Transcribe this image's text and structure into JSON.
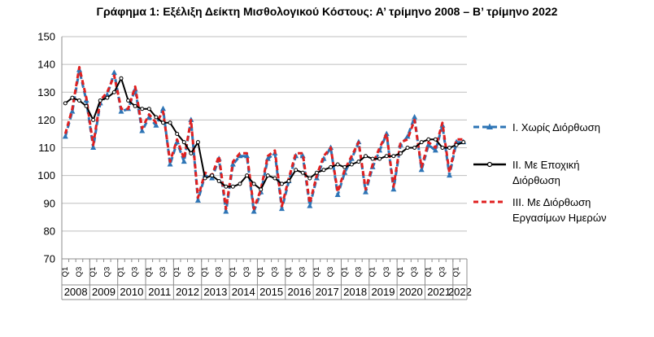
{
  "chart_data": {
    "type": "line",
    "title": "Γράφημα 1: Εξέλιξη Δείκτη Μισθολογικού Κόστους:  Α’ τρίμηνο 2008 – Β’ τρίμηνο 2022",
    "ylim": [
      70,
      150
    ],
    "yticks": [
      70,
      80,
      90,
      100,
      110,
      120,
      130,
      140,
      150
    ],
    "quarter_labels": [
      "Q1",
      "Q3"
    ],
    "years": [
      "2008",
      "2009",
      "2010",
      "2011",
      "2012",
      "2013",
      "2014",
      "2015",
      "2016",
      "2017",
      "2018",
      "2019",
      "2020",
      "2021",
      "2022"
    ],
    "grid": true,
    "legend_position": "right",
    "x": [
      "2008 Q1",
      "2008 Q2",
      "2008 Q3",
      "2008 Q4",
      "2009 Q1",
      "2009 Q2",
      "2009 Q3",
      "2009 Q4",
      "2010 Q1",
      "2010 Q2",
      "2010 Q3",
      "2010 Q4",
      "2011 Q1",
      "2011 Q2",
      "2011 Q3",
      "2011 Q4",
      "2012 Q1",
      "2012 Q2",
      "2012 Q3",
      "2012 Q4",
      "2013 Q1",
      "2013 Q2",
      "2013 Q3",
      "2013 Q4",
      "2014 Q1",
      "2014 Q2",
      "2014 Q3",
      "2014 Q4",
      "2015 Q1",
      "2015 Q2",
      "2015 Q3",
      "2015 Q4",
      "2016 Q1",
      "2016 Q2",
      "2016 Q3",
      "2016 Q4",
      "2017 Q1",
      "2017 Q2",
      "2017 Q3",
      "2017 Q4",
      "2018 Q1",
      "2018 Q2",
      "2018 Q3",
      "2018 Q4",
      "2019 Q1",
      "2019 Q2",
      "2019 Q3",
      "2019 Q4",
      "2020 Q1",
      "2020 Q2",
      "2020 Q3",
      "2020 Q4",
      "2021 Q1",
      "2021 Q2",
      "2021 Q3",
      "2021 Q4",
      "2022 Q1",
      "2022 Q2"
    ],
    "series": [
      {
        "name": "I. Χωρίς Διόρθωση",
        "color": "#2e75b6",
        "style": "dashed-triangle",
        "values": [
          114,
          123,
          138,
          127,
          110,
          126,
          129,
          137,
          123,
          124,
          131,
          116,
          121,
          118,
          124,
          104,
          112,
          105,
          120,
          91,
          100,
          99,
          106,
          87,
          104,
          107,
          107,
          87,
          94,
          106,
          108,
          88,
          98,
          107,
          107,
          89,
          99,
          106,
          110,
          93,
          101,
          106,
          112,
          94,
          103,
          109,
          115,
          95,
          111,
          114,
          121,
          102,
          111,
          109,
          118,
          100,
          112,
          112
        ]
      },
      {
        "name": "II. Με Εποχική Διόρθωση",
        "color": "#000000",
        "style": "solid-circle",
        "values": [
          126,
          128,
          127,
          125,
          120,
          127,
          128,
          130,
          135,
          127,
          125,
          124,
          124,
          121,
          119,
          119,
          115,
          112,
          108,
          112,
          99,
          100,
          98,
          96,
          96,
          97,
          100,
          97,
          95,
          100,
          99,
          97,
          98,
          102,
          101,
          99,
          101,
          102,
          103,
          104,
          103,
          104,
          105,
          107,
          106,
          106,
          107,
          107,
          108,
          110,
          110,
          112,
          113,
          113,
          110,
          110,
          111,
          112
        ]
      },
      {
        "name": "III. Με Διόρθωση Εργασίμων Ημερών",
        "color": "#e02020",
        "style": "dashed",
        "values": [
          115,
          124,
          139,
          128,
          111,
          127,
          130,
          136,
          124,
          124,
          132,
          117,
          122,
          119,
          123,
          105,
          113,
          106,
          120,
          92,
          101,
          100,
          107,
          88,
          105,
          108,
          108,
          88,
          95,
          107,
          109,
          89,
          99,
          108,
          108,
          90,
          100,
          107,
          110,
          94,
          102,
          107,
          112,
          95,
          104,
          110,
          115,
          96,
          112,
          113,
          120,
          103,
          112,
          110,
          119,
          101,
          113,
          113
        ]
      }
    ]
  }
}
